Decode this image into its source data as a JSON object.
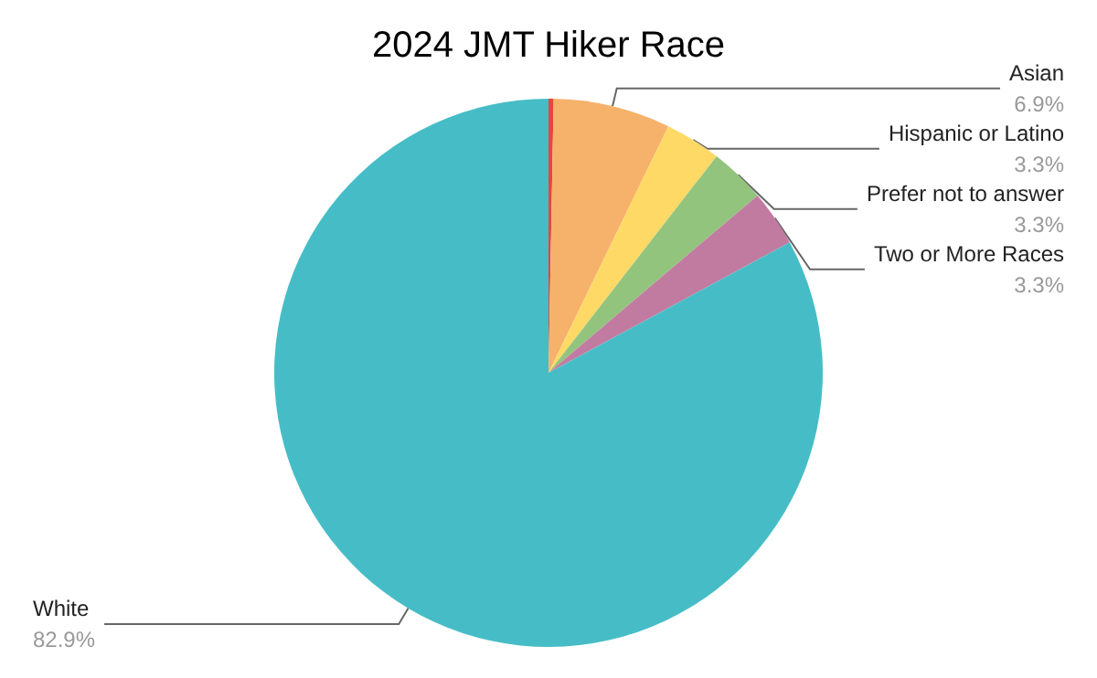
{
  "chart_data": {
    "type": "pie",
    "title": "2024 JMT Hiker Race",
    "categories": [
      null,
      "Asian",
      "Hispanic or Latino",
      "Prefer not to answer",
      "Two or More Races",
      "White"
    ],
    "values": [
      0.3,
      6.9,
      3.3,
      3.3,
      3.3,
      82.9
    ],
    "value_labels": [
      null,
      "6.9%",
      "3.3%",
      "3.3%",
      "3.3%",
      "82.9%"
    ],
    "colors": [
      "#e8453c",
      "#f6b26b",
      "#ffd966",
      "#93c47d",
      "#c27ba0",
      "#46bdc6"
    ],
    "legend": false
  }
}
